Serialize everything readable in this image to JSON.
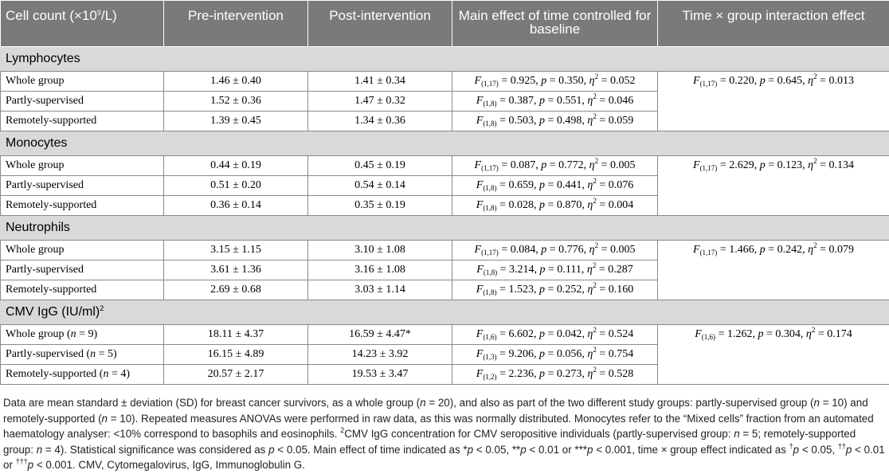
{
  "header": {
    "col0": "Cell count (×10",
    "col0_sup": "9",
    "col0_tail": "/L)",
    "col1": "Pre-intervention",
    "col2": "Post-intervention",
    "col3": "Main effect of time controlled for baseline",
    "col4": "Time × group interaction effect"
  },
  "sections": [
    {
      "title": "Lymphocytes",
      "rows": [
        {
          "label": "Whole group",
          "pre": "1.46 ± 0.40",
          "post": "1.41 ± 0.34",
          "df": "(1,17)",
          "F": "0.925",
          "p": "0.350",
          "eta": "0.052"
        },
        {
          "label": "Partly-supervised",
          "pre": "1.52 ± 0.36",
          "post": "1.47 ± 0.32",
          "df": "(1,8)",
          "F": "0.387",
          "p": "0.551",
          "eta": "0.046"
        },
        {
          "label": "Remotely-supported",
          "pre": "1.39 ± 0.45",
          "post": "1.34 ± 0.36",
          "df": "(1,8)",
          "F": "0.503",
          "p": "0.498",
          "eta": "0.059"
        }
      ],
      "interaction": {
        "df": "(1,17)",
        "F": "0.220",
        "p": "0.645",
        "eta": "0.013"
      }
    },
    {
      "title": "Monocytes",
      "rows": [
        {
          "label": "Whole group",
          "pre": "0.44 ± 0.19",
          "post": "0.45 ± 0.19",
          "df": "(1,17)",
          "F": "0.087",
          "p": "0.772",
          "eta": "0.005"
        },
        {
          "label": "Partly-supervised",
          "pre": "0.51 ± 0.20",
          "post": "0.54 ± 0.14",
          "df": "(1,8)",
          "F": "0.659",
          "p": "0.441",
          "eta": "0.076"
        },
        {
          "label": "Remotely-supported",
          "pre": "0.36 ± 0.14",
          "post": "0.35 ± 0.19",
          "df": "(1,8)",
          "F": "0.028",
          "p": "0.870",
          "eta": "0.004"
        }
      ],
      "interaction": {
        "df": "(1,17)",
        "F": "2.629",
        "p": "0.123",
        "eta": "0.134"
      }
    },
    {
      "title": "Neutrophils",
      "rows": [
        {
          "label": "Whole group",
          "pre": "3.15 ± 1.15",
          "post": "3.10 ± 1.08",
          "df": "(1,17)",
          "F": "0.084",
          "p": "0.776",
          "eta": "0.005"
        },
        {
          "label": "Partly-supervised",
          "pre": "3.61 ± 1.36",
          "post": "3.16 ± 1.08",
          "df": "(1,8)",
          "F": "3.214",
          "p": "0.111",
          "eta": "0.287"
        },
        {
          "label": "Remotely-supported",
          "pre": "2.69 ± 0.68",
          "post": "3.03 ± 1.14",
          "df": "(1,8)",
          "F": "1.523",
          "p": "0.252",
          "eta": "0.160"
        }
      ],
      "interaction": {
        "df": "(1,17)",
        "F": "1.466",
        "p": "0.242",
        "eta": "0.079"
      }
    },
    {
      "title": "CMV IgG (IU/ml)",
      "title_sup": "2",
      "rows": [
        {
          "label": "Whole group (",
          "n": "n",
          "label_tail": " = 9)",
          "pre": "18.11 ± 4.37",
          "post": "16.59 ± 4.47*",
          "df": "(1,6)",
          "F": "6.602",
          "p": "0.042",
          "eta": "0.524"
        },
        {
          "label": "Partly-supervised (",
          "n": "n",
          "label_tail": " = 5)",
          "pre": "16.15 ± 4.89",
          "post": "14.23 ± 3.92",
          "df": "(1,3)",
          "F": "9.206",
          "p": "0.056",
          "eta": "0.754"
        },
        {
          "label": "Remotely-supported (",
          "n": "n",
          "label_tail": " = 4)",
          "pre": "20.57 ± 2.17",
          "post": "19.53 ± 3.47",
          "df": "(1,2)",
          "F": "2.236",
          "p": "0.273",
          "eta": "0.528"
        }
      ],
      "interaction": {
        "df": "(1,6)",
        "F": "1.262",
        "p": "0.304",
        "eta": "0.174"
      }
    }
  ],
  "symbols": {
    "F": "F",
    "p": "p",
    "eta": "η",
    "eta_sup": "2",
    "eq": " = ",
    "comma": ", "
  },
  "footnote": {
    "t1": "Data are mean standard ± deviation (SD) for breast cancer survivors, as a whole group (",
    "t2": " = 20), and also as part of the two different study groups: partly-supervised group (",
    "t3": " = 10) and remotely-supported (",
    "t4": " = 10). Repeated measures ANOVAs were performed in raw data, as this was normally distributed. Monocytes refer to the “Mixed cells” fraction from an automated haematology analyser: <10% correspond to basophils and eosinophils. ",
    "sup2": "2",
    "t5": "CMV IgG concentration for CMV seropositive individuals (partly-supervised group: ",
    "t6": " = 5; remotely-supported group: ",
    "t7": " = 4). Statistical significance was considered as ",
    "t8": " < 0.05. Main effect of time indicated as *",
    "t9": " < 0.05, **",
    "t10": " < 0.01 or ***",
    "t11": " < 0.001, time × group effect indicated as ",
    "dag1": "†",
    "t12": " < 0.05, ",
    "dag2": "††",
    "t13": " < 0.01 or ",
    "dag3": "†††",
    "t14": " < 0.001. CMV, Cytomegalovirus, IgG, Immunoglobulin G.",
    "n": "n",
    "p": "p"
  }
}
